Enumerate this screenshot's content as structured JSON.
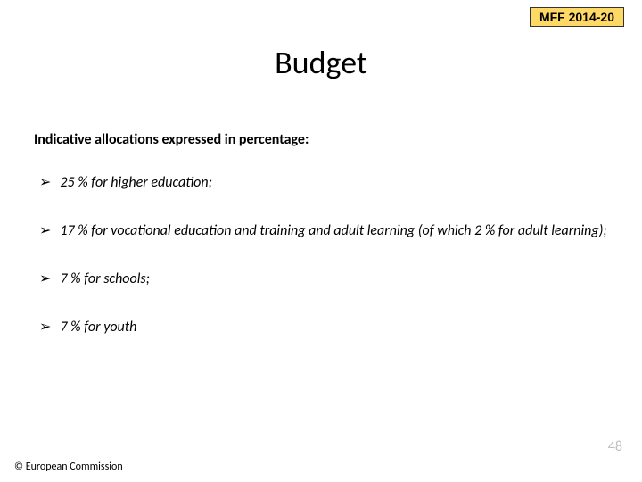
{
  "badge": {
    "label": "MFF 2014-20",
    "bg": "#ffd966",
    "border": "#333333"
  },
  "title": "Budget",
  "subheading": "Indicative allocations expressed in percentage:",
  "bullets": [
    {
      "text": "25 % for higher education;"
    },
    {
      "text": "17 % for vocational education and training and adult learning (of which 2 % for adult learning);"
    },
    {
      "text": "7 % for schools;"
    },
    {
      "text": "7 % for youth"
    }
  ],
  "bullet_marker": "➢",
  "page_number": "48",
  "copyright": "© European Commission",
  "colors": {
    "background": "#ffffff",
    "text": "#000000",
    "page_number": "#bfbfbf"
  },
  "fonts": {
    "title_size_pt": 28,
    "body_size_pt": 12,
    "subheading_weight": "bold",
    "bullet_style": "italic"
  }
}
